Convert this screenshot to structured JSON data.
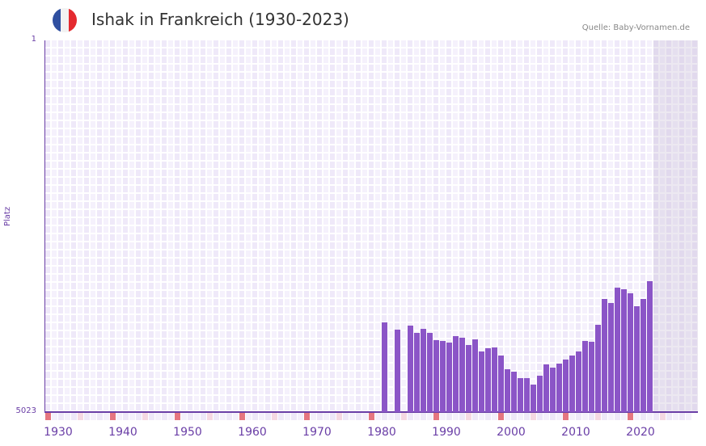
{
  "header": {
    "title": "Ishak in Frankreich (1930-2023)",
    "source": "Quelle: Baby-Vornamen.de",
    "flag_colors": [
      "#2f4fa0",
      "#f2f2f2",
      "#e42a2f"
    ]
  },
  "chart_data": {
    "type": "bar",
    "title": "Ishak in Frankreich (1930-2023)",
    "xlabel": "",
    "ylabel": "Platz",
    "xlim": [
      1928,
      2028
    ],
    "ylim": [
      5023,
      1
    ],
    "ytick_labels": [
      "1",
      "5023"
    ],
    "xtick_labels": [
      "1930",
      "1940",
      "1950",
      "1960",
      "1970",
      "1980",
      "1990",
      "2000",
      "2010",
      "2020"
    ],
    "bar_color": "#8b55c7",
    "years": [
      1980,
      1982,
      1984,
      1985,
      1986,
      1987,
      1988,
      1989,
      1990,
      1991,
      1992,
      1993,
      1994,
      1995,
      1996,
      1997,
      1998,
      1999,
      2000,
      2001,
      2002,
      2003,
      2004,
      2005,
      2006,
      2007,
      2008,
      2009,
      2010,
      2011,
      2012,
      2013,
      2014,
      2015,
      2016,
      2017,
      2018,
      2019,
      2020,
      2021
    ],
    "ranks": [
      3811,
      3909,
      3854,
      3952,
      3898,
      3952,
      4051,
      4062,
      4084,
      3997,
      4018,
      4117,
      4040,
      4204,
      4160,
      4149,
      4259,
      4444,
      4477,
      4564,
      4564,
      4652,
      4532,
      4379,
      4422,
      4368,
      4313,
      4259,
      4204,
      4062,
      4073,
      3844,
      3494,
      3549,
      3342,
      3363,
      3418,
      3593,
      3494,
      3254
    ],
    "future_from": 2022
  }
}
